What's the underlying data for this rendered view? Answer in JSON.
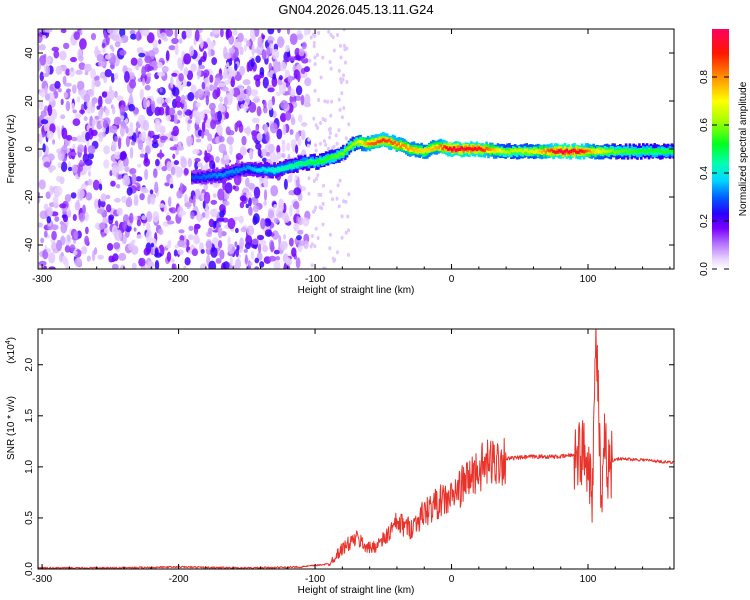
{
  "title": "GN04.2026.045.13.11.G24",
  "colors": {
    "snr_line": "#e8322a",
    "colorbar_stops": [
      "#ffffff",
      "#d8b4fe",
      "#8b00ff",
      "#2f00ff",
      "#0080ff",
      "#00ffff",
      "#00ff40",
      "#aaff00",
      "#ffff00",
      "#ff8000",
      "#ff0000",
      "#ff0040"
    ]
  },
  "chart_data": [
    {
      "type": "heatmap",
      "xlabel": "Height of straight line (km)",
      "ylabel": "Frequency (Hz)",
      "xlim": [
        -303,
        163
      ],
      "ylim": [
        -50,
        50
      ],
      "x_ticks": [
        -300,
        -200,
        -100,
        0,
        100
      ],
      "x_tick_labels": [
        "-300",
        "-200",
        "-100",
        "0",
        "100"
      ],
      "y_ticks": [
        -40,
        -20,
        0,
        20,
        40
      ],
      "y_tick_labels": [
        "-40",
        "-20",
        "0",
        "20",
        "40"
      ],
      "colorbar": {
        "label": "Normalized spectral amplitude",
        "range": [
          0,
          1
        ],
        "ticks": [
          "0.0",
          "0.2",
          "0.4",
          "0.6",
          "0.8"
        ],
        "tick_values": [
          0,
          0.2,
          0.4,
          0.6,
          0.8
        ]
      },
      "ridge": {
        "x": [
          -190,
          -170,
          -150,
          -130,
          -110,
          -95,
          -80,
          -70,
          -60,
          -50,
          -40,
          -30,
          -20,
          -10,
          0,
          20,
          40,
          60,
          80,
          95,
          105,
          120,
          140,
          163
        ],
        "y": [
          -12,
          -11,
          -8,
          -9,
          -6,
          -5,
          -2,
          3,
          2,
          4,
          2,
          0,
          -1,
          1,
          0,
          0,
          -1,
          -1,
          -1,
          -1,
          -1,
          -1,
          -1,
          -1
        ],
        "amplitude": [
          0.25,
          0.3,
          0.3,
          0.4,
          0.45,
          0.5,
          0.55,
          0.6,
          0.8,
          0.85,
          0.8,
          0.75,
          0.7,
          0.75,
          0.95,
          0.9,
          0.6,
          0.65,
          0.95,
          0.9,
          0.7,
          0.55,
          0.5,
          0.5
        ]
      },
      "noise_region_x": [
        -303,
        -105
      ]
    },
    {
      "type": "line",
      "xlabel": "Height of straight line (km)",
      "ylabel": "SNR (10 * v/v)",
      "yscale_label": "(x10",
      "yscale_exp": "4",
      "xlim": [
        -303,
        163
      ],
      "ylim": [
        0,
        2.35
      ],
      "x_ticks": [
        -300,
        -200,
        -100,
        0,
        100
      ],
      "x_tick_labels": [
        "-300",
        "-200",
        "-100",
        "0",
        "100"
      ],
      "y_ticks": [
        0,
        0.5,
        1.0,
        1.5,
        2.0
      ],
      "y_tick_labels": [
        "0.0",
        "0.5",
        "1.0",
        "1.5",
        "2.0"
      ],
      "series": [
        {
          "x": [
            -303,
            -250,
            -200,
            -150,
            -110,
            -90,
            -80,
            -70,
            -60,
            -50,
            -40,
            -30,
            -20,
            -10,
            0,
            10,
            20,
            30,
            40,
            60,
            80,
            90,
            95,
            100,
            103,
            106,
            108,
            110,
            112,
            115,
            120,
            140,
            163
          ],
          "y": [
            0.01,
            0.01,
            0.02,
            0.01,
            0.02,
            0.05,
            0.2,
            0.3,
            0.2,
            0.28,
            0.45,
            0.4,
            0.55,
            0.65,
            0.7,
            0.85,
            0.98,
            1.05,
            1.08,
            1.1,
            1.1,
            1.12,
            1.15,
            1.1,
            0.8,
            2.3,
            1.5,
            0.4,
            1.2,
            1.0,
            1.08,
            1.07,
            1.04
          ]
        }
      ]
    }
  ]
}
